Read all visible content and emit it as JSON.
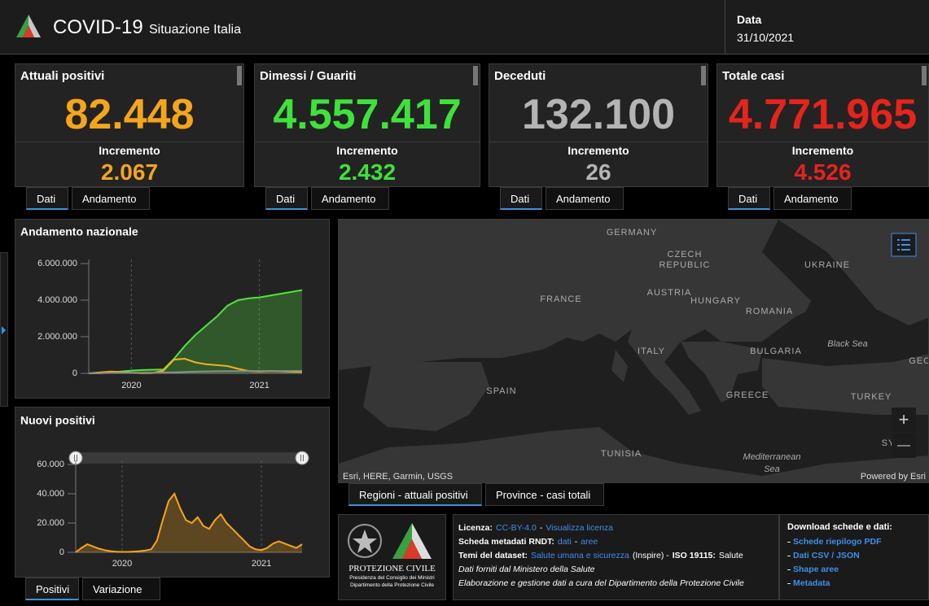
{
  "header": {
    "title": "COVID-19",
    "subtitle": "Situazione Italia",
    "date_label": "Data",
    "date": "31/10/2021"
  },
  "cards": [
    {
      "title": "Attuali positivi",
      "value": "82.448",
      "increment_label": "Incremento",
      "increment": "2.067",
      "color": "#f5a51c",
      "tabs": [
        "Dati",
        "Andamento"
      ]
    },
    {
      "title": "Dimessi / Guariti",
      "value": "4.557.417",
      "increment_label": "Incremento",
      "increment": "2.432",
      "color": "#3ee23a",
      "tabs": [
        "Dati",
        "Andamento"
      ]
    },
    {
      "title": "Deceduti",
      "value": "132.100",
      "increment_label": "Incremento",
      "increment": "26",
      "color": "#b4b4b4",
      "tabs": [
        "Dati",
        "Andamento"
      ]
    },
    {
      "title": "Totale casi",
      "value": "4.771.965",
      "increment_label": "Incremento",
      "increment": "4.526",
      "color": "#e5241b",
      "tabs": [
        "Dati",
        "Andamento"
      ]
    }
  ],
  "chart_data": [
    {
      "type": "line",
      "title": "Andamento nazionale",
      "categories": [
        null,
        null,
        null,
        null,
        "2020",
        null,
        null,
        null,
        null,
        null,
        null,
        null,
        null,
        null,
        null,
        null,
        "2021",
        null,
        null,
        null,
        null
      ],
      "series": [
        {
          "color": "#52e33f",
          "area": true,
          "values": [
            0,
            10000,
            50000,
            100000,
            150000,
            180000,
            200000,
            210000,
            800000,
            1500000,
            2100000,
            2600000,
            3100000,
            3700000,
            4000000,
            4100000,
            4150000,
            4250000,
            4350000,
            4450000,
            4550000
          ]
        },
        {
          "color": "#f2b11d",
          "area": false,
          "values": [
            0,
            50000,
            100000,
            80000,
            30000,
            15000,
            20000,
            150000,
            750000,
            800000,
            600000,
            500000,
            450000,
            400000,
            250000,
            130000,
            100000,
            130000,
            110000,
            90000,
            82000
          ]
        },
        {
          "color": "#8c8c8c",
          "area": false,
          "values": [
            0,
            5000,
            30000,
            35000,
            35000,
            35000,
            36000,
            45000,
            60000,
            75000,
            95000,
            105000,
            115000,
            120000,
            125000,
            127000,
            128000,
            129000,
            130000,
            131000,
            132000
          ]
        }
      ],
      "ylim": [
        0,
        6000000
      ],
      "yticks": [
        0,
        {
          "value": 2000000,
          "label": "2.000.000"
        },
        {
          "value": 4000000,
          "label": "4.000.000"
        },
        {
          "value": 6000000,
          "label": "6.000.000"
        }
      ],
      "tabs": []
    },
    {
      "type": "line",
      "title": "Nuovi positivi",
      "categories": [
        null,
        null,
        null,
        null,
        null,
        null,
        null,
        null,
        "2020",
        null,
        null,
        null,
        null,
        null,
        null,
        null,
        null,
        null,
        null,
        null,
        null,
        null,
        null,
        null,
        null,
        null,
        null,
        null,
        null,
        null,
        null,
        null,
        "2021",
        null,
        null,
        null,
        null,
        null,
        null,
        null
      ],
      "series": [
        {
          "color": "#f5a51c",
          "area": true,
          "values": [
            0,
            3000,
            5500,
            4000,
            2500,
            1500,
            800,
            400,
            300,
            300,
            500,
            800,
            1200,
            2000,
            8000,
            22000,
            35000,
            40000,
            30000,
            22000,
            20000,
            24000,
            18000,
            16000,
            22000,
            26000,
            20000,
            16000,
            12000,
            8000,
            4000,
            2000,
            1500,
            3000,
            6000,
            7500,
            6000,
            4500,
            3000,
            5500
          ]
        }
      ],
      "ylim": [
        0,
        60000
      ],
      "yticks": [
        0,
        {
          "value": 20000,
          "label": "20.000"
        },
        {
          "value": 40000,
          "label": "40.000"
        },
        {
          "value": 60000,
          "label": "60.000"
        }
      ],
      "tabs": [
        "Positivi",
        "Variazione"
      ]
    }
  ],
  "map": {
    "labels": [
      "GERMANY",
      "CZECH",
      "REPUBLIC",
      "UKRAINE",
      "FRANCE",
      "AUSTRIA",
      "HUNGARY",
      "ROMANIA",
      "Black Sea",
      "ITALY",
      "BULGARIA",
      "GEO",
      "SPAIN",
      "GREECE",
      "TURKEY",
      "TUNISIA",
      "Mediterranean",
      "Sea",
      "SY"
    ],
    "attribution": "Esri, HERE, Garmin, USGS",
    "powered": "Powered by Esri",
    "zoom_in": "+",
    "zoom_out": "—",
    "tabs": [
      "Regioni - attuali positivi",
      "Province - casi totali"
    ]
  },
  "info": {
    "logo": [
      "PROTEZIONE CIVILE",
      "Presidenza del Consiglio dei Ministri",
      "Dipartimento della Protezione Civile"
    ],
    "lines": [
      [
        {
          "text": "Licenza:",
          "kind": "bold"
        },
        {
          "text": "CC-BY-4.0",
          "kind": "link"
        },
        {
          "text": "-",
          "kind": "plain"
        },
        {
          "text": "Visualizza licenza",
          "kind": "link"
        }
      ],
      [
        {
          "text": "Scheda metadati RNDT:",
          "kind": "bold"
        },
        {
          "text": "dati",
          "kind": "link"
        },
        {
          "text": "-",
          "kind": "plain"
        },
        {
          "text": "aree",
          "kind": "link"
        }
      ],
      [
        {
          "text": "Temi del dataset:",
          "kind": "bold"
        },
        {
          "text": "Salute umana e sicurezza",
          "kind": "link"
        },
        {
          "text": "(Inspire) -",
          "kind": "plain"
        },
        {
          "text": "ISO 19115:",
          "kind": "bold"
        },
        {
          "text": "Salute",
          "kind": "plain"
        }
      ],
      [
        {
          "text": "Dati forniti dal Ministero della Salute",
          "kind": "italic"
        }
      ],
      [
        {
          "text": "Elaborazione e gestione dati a cura del Dipartimento della Protezione Civile",
          "kind": "italic"
        }
      ]
    ],
    "download_title": "Download schede e dati:",
    "downloads": [
      "Schede riepilogo PDF",
      "Dati CSV / JSON",
      "Shape aree",
      "Metadata"
    ]
  }
}
